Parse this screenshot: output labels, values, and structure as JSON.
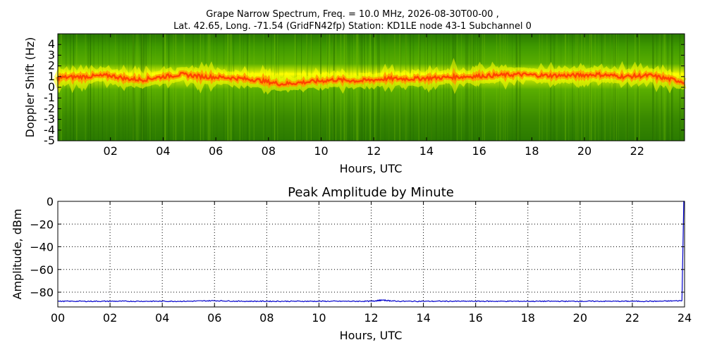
{
  "header": {
    "line1": "Grape Narrow Spectrum, Freq. = 10.0 MHz, 2026-08-30T00-00 ,",
    "line2": "Lat.  42.65, Long. -71.54 (GridFN42fp) Station: KD1LE node 43-1 Subchannel 0"
  },
  "chart_data": [
    {
      "type": "heatmap",
      "title": "",
      "xlabel": "Hours, UTC",
      "ylabel": "Doppler Shift (Hz)",
      "xlim": [
        0,
        23.8
      ],
      "ylim": [
        -5,
        5
      ],
      "xticks": [
        "02",
        "04",
        "06",
        "08",
        "10",
        "12",
        "14",
        "16",
        "18",
        "20",
        "22"
      ],
      "xtick_values": [
        2,
        4,
        6,
        8,
        10,
        12,
        14,
        16,
        18,
        20,
        22
      ],
      "yticks": [
        "4",
        "3",
        "2",
        "1",
        "0",
        "-1",
        "-2",
        "-3",
        "-4",
        "-5"
      ],
      "ytick_values": [
        4,
        3,
        2,
        1,
        0,
        -1,
        -2,
        -3,
        -4,
        -5
      ],
      "colormap": [
        "#1f6b00",
        "#3f9a00",
        "#8fcf00",
        "#ffff00",
        "#ff6600"
      ],
      "trace": {
        "name": "Doppler shift peak",
        "x": [
          0,
          1,
          2,
          2.6,
          3.2,
          4,
          4.7,
          5.5,
          6.5,
          7.5,
          8.5,
          9.5,
          10.5,
          11.5,
          12.5,
          13.5,
          14.5,
          15.5,
          16.5,
          17.5,
          18.5,
          19.5,
          20.5,
          21.5,
          22.5,
          23.8
        ],
        "y": [
          0.9,
          1.0,
          1.1,
          0.8,
          0.7,
          1.0,
          1.2,
          1.0,
          0.9,
          0.7,
          0.3,
          0.5,
          0.7,
          0.6,
          0.8,
          0.8,
          0.9,
          1.0,
          1.1,
          1.2,
          1.1,
          1.1,
          1.2,
          1.0,
          1.1,
          0.5
        ]
      }
    },
    {
      "type": "line",
      "title": "Peak Amplitude by Minute",
      "xlabel": "Hours, UTC",
      "ylabel": "Amplitude, dBm",
      "xlim": [
        0,
        24
      ],
      "ylim": [
        -93,
        0
      ],
      "grid": true,
      "xticks": [
        "00",
        "02",
        "04",
        "06",
        "08",
        "10",
        "12",
        "14",
        "16",
        "18",
        "20",
        "22",
        "24"
      ],
      "xtick_values": [
        0,
        2,
        4,
        6,
        8,
        10,
        12,
        14,
        16,
        18,
        20,
        22,
        24
      ],
      "yticks": [
        "0",
        "−20",
        "−40",
        "−60",
        "−80"
      ],
      "ytick_values": [
        0,
        -20,
        -40,
        -60,
        -80
      ],
      "color": "#0000cc",
      "series": [
        {
          "x": [
            0,
            1,
            2,
            3,
            4,
            5,
            6,
            7,
            8,
            9,
            10,
            11,
            12,
            12.4,
            13,
            14,
            15,
            16,
            17,
            18,
            19,
            20,
            21,
            22,
            23,
            23.9,
            23.97,
            24
          ],
          "values": [
            -88,
            -88,
            -88,
            -88,
            -88,
            -88,
            -87.5,
            -88,
            -88,
            -88,
            -88,
            -88,
            -88,
            -87,
            -88,
            -88,
            -88,
            -88,
            -88,
            -88,
            -88,
            -88,
            -88,
            -88,
            -88,
            -87.5,
            0,
            0
          ]
        }
      ]
    }
  ]
}
